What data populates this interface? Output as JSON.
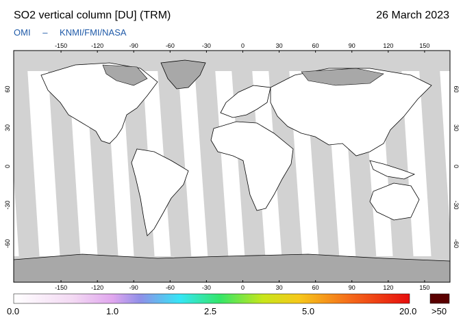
{
  "header": {
    "title": "SO2 vertical column [DU] (TRM)",
    "date": "26 March 2023",
    "credits": [
      "OMI",
      "–",
      "KNMI/FMI/NASA"
    ]
  },
  "map": {
    "lon_ticks": [
      -150,
      -120,
      -90,
      -60,
      -30,
      0,
      30,
      60,
      90,
      120,
      150
    ],
    "lat_ticks": [
      60,
      30,
      0,
      -30,
      -60
    ],
    "colors": {
      "ocean": "#ffffff",
      "gap": "#d2d2d2",
      "land_no_data": "#a8a8a8",
      "coast": "#000000"
    }
  },
  "colorbar": {
    "labels": [
      "0.0",
      "1.0",
      "2.5",
      "5.0",
      "20.0"
    ],
    "overflow_label": ">50",
    "stops": [
      "#ffffff",
      "#f3d9f3",
      "#e0a6ee",
      "#8f8fe8",
      "#35e6f6",
      "#33e66a",
      "#c8e61a",
      "#f6c81a",
      "#f56a1a",
      "#e60d0d"
    ],
    "overflow_color": "#5a0000"
  }
}
